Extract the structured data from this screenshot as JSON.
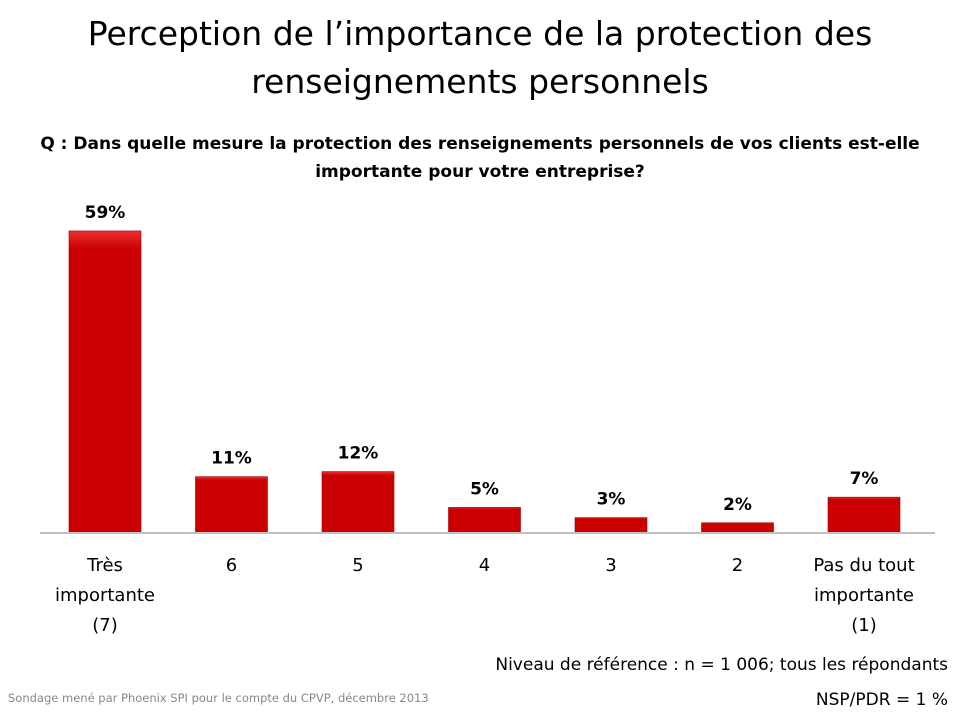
{
  "title": "Perception de l’importance de la protection des renseignements personnels",
  "question": "Q : Dans quelle mesure la protection des renseignements personnels de vos clients est-elle importante pour votre entreprise?",
  "base_note": "Niveau de référence : n = 1 006; tous les répondants",
  "nsp_note": "NSP/PDR = 1 %",
  "source": "Sondage mené par Phoenix SPI pour le compte du CPVP, décembre 2013",
  "chart_data": {
    "type": "bar",
    "categories": [
      [
        "Très",
        "importante",
        "(7)"
      ],
      [
        "6"
      ],
      [
        "5"
      ],
      [
        "4"
      ],
      [
        "3"
      ],
      [
        "2"
      ],
      [
        "Pas du tout",
        "importante",
        "(1)"
      ]
    ],
    "values": [
      59,
      11,
      12,
      5,
      3,
      2,
      7
    ],
    "data_labels": [
      "59%",
      "11%",
      "12%",
      "5%",
      "3%",
      "2%",
      "7%"
    ],
    "unit": "%",
    "ylim": [
      0,
      60
    ],
    "grid": false,
    "bar_color": "#cc0000",
    "axis_color": "#bfbfbf"
  }
}
